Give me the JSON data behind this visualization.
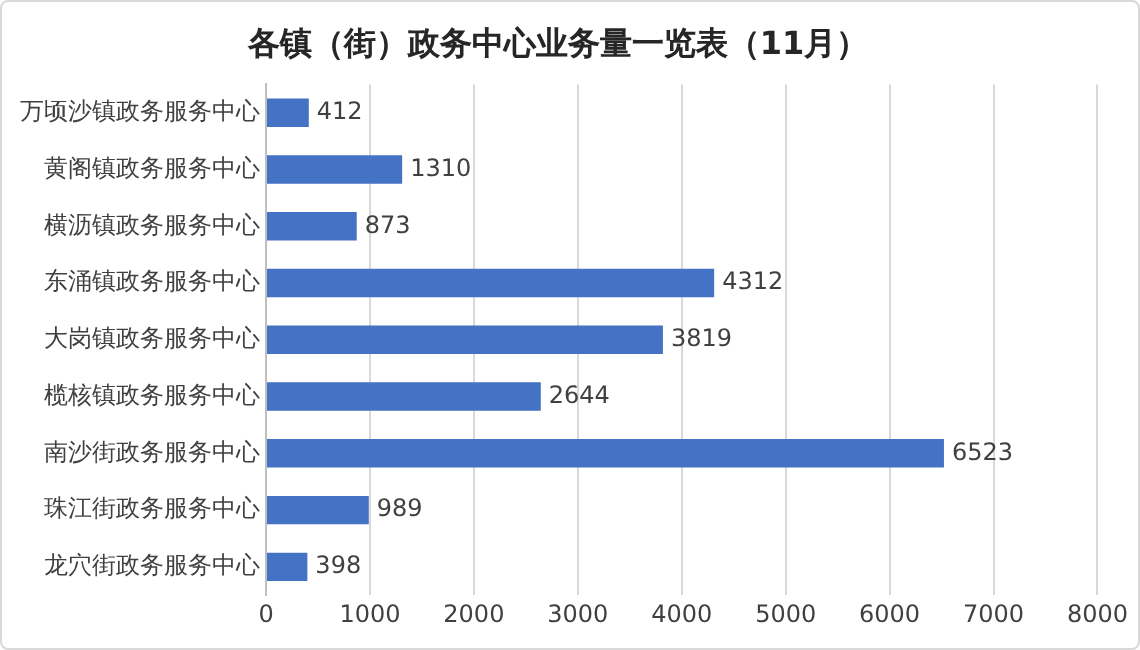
{
  "chart_data": {
    "type": "bar",
    "orientation": "horizontal",
    "title": "各镇（街）政务中心业务量一览表（11月）",
    "categories": [
      "万顷沙镇政务服务中心",
      "黄阁镇政务服务中心",
      "横沥镇政务服务中心",
      "东涌镇政务服务中心",
      "大岗镇政务服务中心",
      "榄核镇政务服务中心",
      "南沙街政务服务中心",
      "珠江街政务服务中心",
      "龙穴街政务服务中心"
    ],
    "values": [
      412,
      1310,
      873,
      4312,
      3819,
      2644,
      6523,
      989,
      398
    ],
    "color": "#4472c4",
    "xlim": [
      0,
      8000
    ],
    "xticks": [
      0,
      1000,
      2000,
      3000,
      4000,
      5000,
      6000,
      7000,
      8000
    ],
    "grid": "x",
    "data_labels": true,
    "legend": false
  }
}
